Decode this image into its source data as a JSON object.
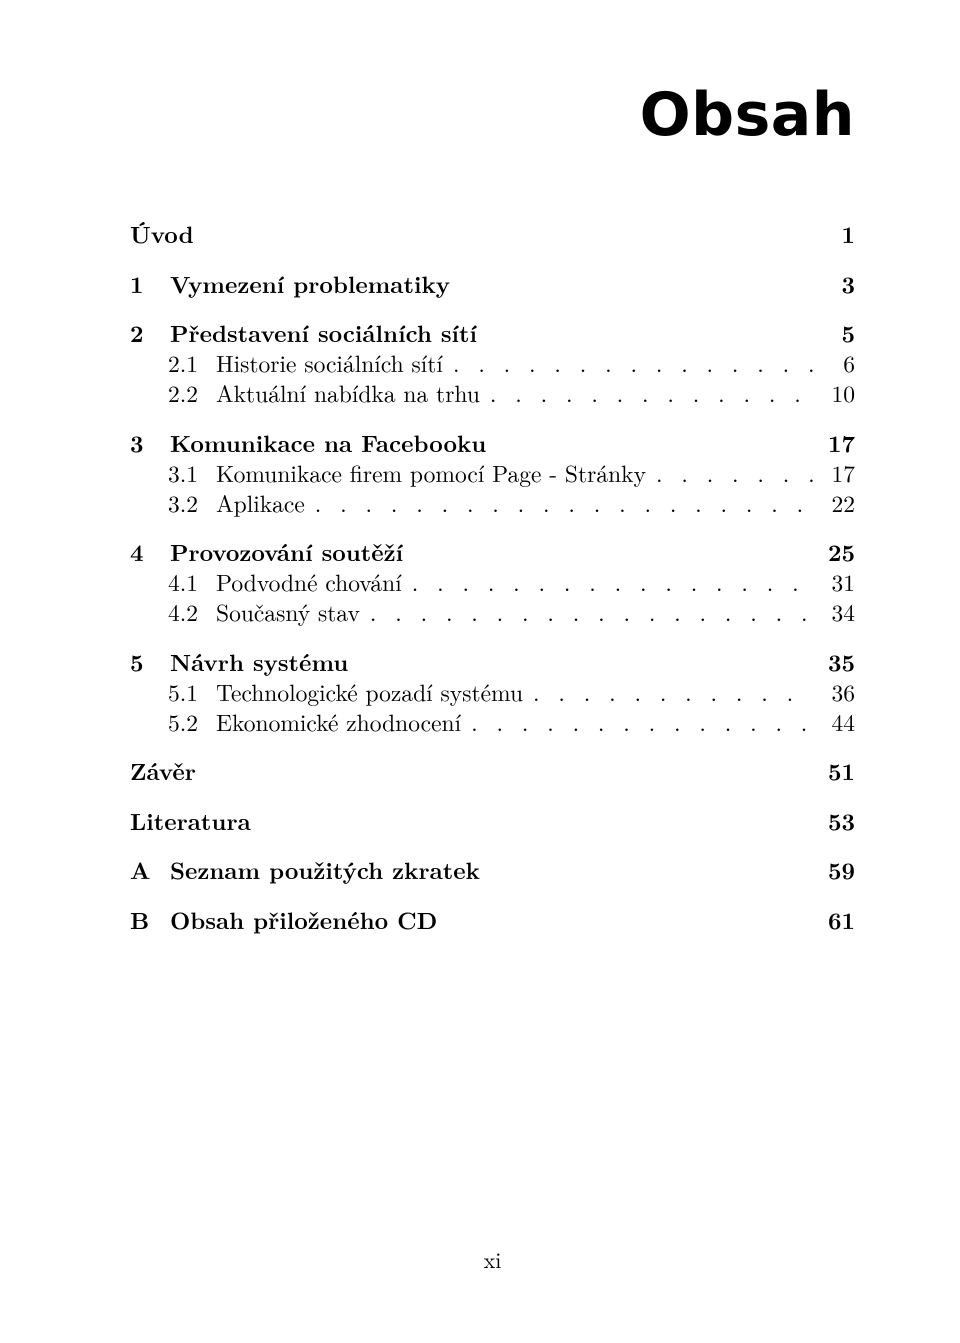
{
  "title": "Obsah",
  "leader_dots": ". . . . . . . . . . . . . . . . . . . . . . . . . . . . . . . . . . . . . . . . . . . . . . . . . . . . . . . . . . . .",
  "page_number": "xi",
  "toc": {
    "uvod": {
      "label": "Úvod",
      "page": "1"
    },
    "c1": {
      "num": "1",
      "label": "Vymezení problematiky",
      "page": "3"
    },
    "c2": {
      "num": "2",
      "label": "Představení sociálních sítí",
      "page": "5"
    },
    "c2_1": {
      "num": "2.1",
      "label": "Historie sociálních sítí",
      "page": "6"
    },
    "c2_2": {
      "num": "2.2",
      "label": "Aktuální nabídka na trhu",
      "page": "10"
    },
    "c3": {
      "num": "3",
      "label": "Komunikace na Facebooku",
      "page": "17"
    },
    "c3_1": {
      "num": "3.1",
      "label": "Komunikace firem pomocí Page - Stránky",
      "page": "17"
    },
    "c3_2": {
      "num": "3.2",
      "label": "Aplikace",
      "page": "22"
    },
    "c4": {
      "num": "4",
      "label": "Provozování soutěží",
      "page": "25"
    },
    "c4_1": {
      "num": "4.1",
      "label": "Podvodné chování",
      "page": "31"
    },
    "c4_2": {
      "num": "4.2",
      "label": "Současný stav",
      "page": "34"
    },
    "c5": {
      "num": "5",
      "label": "Návrh systému",
      "page": "35"
    },
    "c5_1": {
      "num": "5.1",
      "label": "Technologické pozadí systému",
      "page": "36"
    },
    "c5_2": {
      "num": "5.2",
      "label": "Ekonomické zhodnocení",
      "page": "44"
    },
    "zaver": {
      "label": "Závěr",
      "page": "51"
    },
    "lit": {
      "label": "Literatura",
      "page": "53"
    },
    "apA": {
      "num": "A",
      "label": "Seznam použitých zkratek",
      "page": "59"
    },
    "apB": {
      "num": "B",
      "label": "Obsah přiloženého CD",
      "page": "61"
    }
  }
}
